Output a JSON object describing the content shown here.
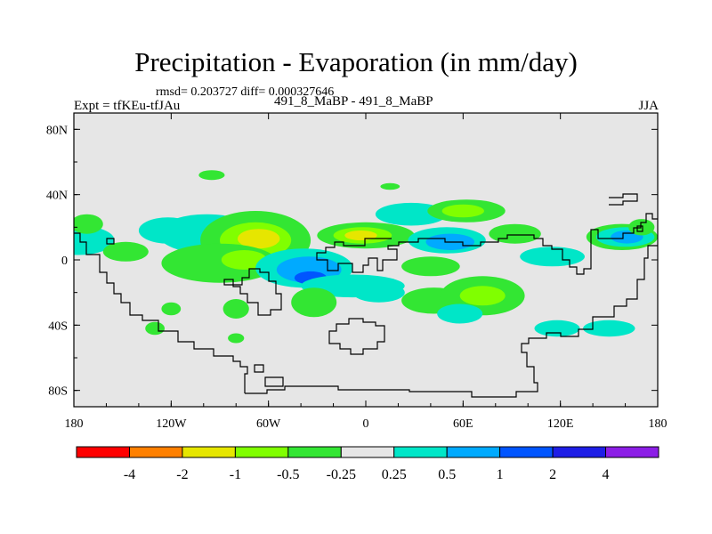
{
  "chart_data": {
    "type": "heatmap",
    "title": "Precipitation - Evaporation (in mm/day)",
    "stats_text": "rmsd= 0.203727 diff= 0.000327646",
    "left_label": "Expt = tfKEu-tfJAu",
    "center_label": "491_8_MaBP - 491_8_MaBP",
    "right_label": "JJA",
    "x_ticks": [
      "180",
      "120W",
      "60W",
      "0",
      "60E",
      "120E",
      "180"
    ],
    "x_tick_values": [
      -180,
      -120,
      -60,
      0,
      60,
      120,
      180
    ],
    "y_ticks": [
      "80N",
      "40N",
      "0",
      "40S",
      "80S"
    ],
    "y_tick_values": [
      80,
      40,
      0,
      -40,
      -80
    ],
    "xlim": [
      -180,
      180
    ],
    "ylim": [
      -90,
      90
    ],
    "colorbar": {
      "labels": [
        "-4",
        "-2",
        "-1",
        "-0.5",
        "-0.25",
        "0.25",
        "0.5",
        "1",
        "2",
        "4"
      ],
      "colors": [
        "#ff0000",
        "#ff8000",
        "#e6e600",
        "#80ff00",
        "#33e633",
        "#e6e6e6",
        "#00e6c8",
        "#00aaff",
        "#0055ff",
        "#1e1ee6",
        "#8c1ee6"
      ]
    },
    "regions": [
      {
        "level": "0.25",
        "lon": -177,
        "lat": 12,
        "w": 22,
        "h": 9
      },
      {
        "level": "-0.25",
        "lon": -172,
        "lat": 22,
        "w": 10,
        "h": 6
      },
      {
        "level": "-0.25",
        "lon": -148,
        "lat": 5,
        "w": 14,
        "h": 6
      },
      {
        "level": "-0.25",
        "lon": -112,
        "lat": 13,
        "w": 10,
        "h": 6
      },
      {
        "level": "0.25",
        "lon": -122,
        "lat": 18,
        "w": 18,
        "h": 8
      },
      {
        "level": "0.25",
        "lon": -98,
        "lat": 16,
        "w": 30,
        "h": 12
      },
      {
        "level": "-0.25",
        "lon": -68,
        "lat": 12,
        "w": 34,
        "h": 18
      },
      {
        "level": "-0.5",
        "lon": -68,
        "lat": 12,
        "w": 22,
        "h": 11
      },
      {
        "level": "-1",
        "lon": -66,
        "lat": 13,
        "w": 13,
        "h": 6
      },
      {
        "level": "-0.25",
        "lon": -90,
        "lat": -2,
        "w": 36,
        "h": 12
      },
      {
        "level": "-0.5",
        "lon": -75,
        "lat": 0,
        "w": 14,
        "h": 6
      },
      {
        "level": "0.25",
        "lon": -38,
        "lat": -5,
        "w": 30,
        "h": 12
      },
      {
        "level": "0.5",
        "lon": -35,
        "lat": -6,
        "w": 20,
        "h": 8
      },
      {
        "level": "1",
        "lon": -34,
        "lat": -11,
        "w": 10,
        "h": 4
      },
      {
        "level": "0.25",
        "lon": -8,
        "lat": -16,
        "w": 32,
        "h": 7
      },
      {
        "level": "-0.25",
        "lon": -32,
        "lat": -26,
        "w": 14,
        "h": 9
      },
      {
        "level": "-0.25",
        "lon": 0,
        "lat": 15,
        "w": 30,
        "h": 8
      },
      {
        "level": "-0.5",
        "lon": -2,
        "lat": 15,
        "w": 18,
        "h": 5
      },
      {
        "level": "-1",
        "lon": -3,
        "lat": 15,
        "w": 10,
        "h": 3
      },
      {
        "level": "0.25",
        "lon": 28,
        "lat": 28,
        "w": 22,
        "h": 7
      },
      {
        "level": "0.25",
        "lon": 50,
        "lat": 12,
        "w": 24,
        "h": 8
      },
      {
        "level": "0.5",
        "lon": 52,
        "lat": 11,
        "w": 15,
        "h": 5
      },
      {
        "level": "-0.25",
        "lon": 62,
        "lat": 30,
        "w": 24,
        "h": 7
      },
      {
        "level": "-0.5",
        "lon": 60,
        "lat": 30,
        "w": 13,
        "h": 4
      },
      {
        "level": "-0.25",
        "lon": 92,
        "lat": 16,
        "w": 16,
        "h": 6
      },
      {
        "level": "-0.25",
        "lon": 40,
        "lat": -4,
        "w": 18,
        "h": 6
      },
      {
        "level": "0.25",
        "lon": 8,
        "lat": -20,
        "w": 16,
        "h": 6
      },
      {
        "level": "-0.25",
        "lon": 42,
        "lat": -25,
        "w": 20,
        "h": 8
      },
      {
        "level": "-0.25",
        "lon": 72,
        "lat": -22,
        "w": 26,
        "h": 12
      },
      {
        "level": "-0.5",
        "lon": 72,
        "lat": -22,
        "w": 14,
        "h": 6
      },
      {
        "level": "0.25",
        "lon": 58,
        "lat": -33,
        "w": 14,
        "h": 6
      },
      {
        "level": "0.25",
        "lon": 115,
        "lat": 2,
        "w": 20,
        "h": 6
      },
      {
        "level": "0.25",
        "lon": 118,
        "lat": -42,
        "w": 14,
        "h": 5
      },
      {
        "level": "0.25",
        "lon": 150,
        "lat": -42,
        "w": 16,
        "h": 5
      },
      {
        "level": "-0.25",
        "lon": 158,
        "lat": 14,
        "w": 22,
        "h": 8
      },
      {
        "level": "0.25",
        "lon": 160,
        "lat": 14,
        "w": 18,
        "h": 6
      },
      {
        "level": "0.5",
        "lon": 161,
        "lat": 14,
        "w": 10,
        "h": 4
      },
      {
        "level": "-0.25",
        "lon": 170,
        "lat": 20,
        "w": 8,
        "h": 5
      },
      {
        "level": "-0.25",
        "lon": -95,
        "lat": 52,
        "w": 8,
        "h": 3
      },
      {
        "level": "-0.25",
        "lon": 15,
        "lat": 45,
        "w": 6,
        "h": 2
      },
      {
        "level": "-0.25",
        "lon": -80,
        "lat": -30,
        "w": 8,
        "h": 6
      },
      {
        "level": "-0.25",
        "lon": -120,
        "lat": -30,
        "w": 6,
        "h": 4
      },
      {
        "level": "-0.25",
        "lon": -130,
        "lat": -42,
        "w": 6,
        "h": 4
      },
      {
        "level": "-0.25",
        "lon": -80,
        "lat": -48,
        "w": 5,
        "h": 3
      }
    ]
  }
}
